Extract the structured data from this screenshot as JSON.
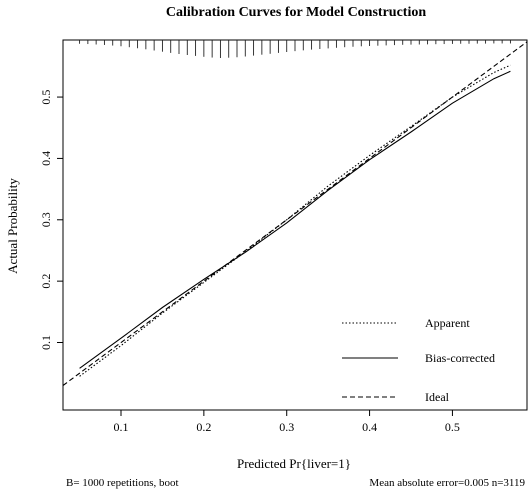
{
  "chart_data": {
    "type": "line",
    "title": "Calibration Curves for Model Construction",
    "xlabel": "Predicted Pr{liver=1}",
    "ylabel": "Actual Probability",
    "xlim": [
      0.03,
      0.59
    ],
    "ylim": [
      -0.01,
      0.593
    ],
    "x_ticks": [
      0.1,
      0.2,
      0.3,
      0.4,
      0.5
    ],
    "x_tick_labels": [
      "0.1",
      "0.2",
      "0.3",
      "0.4",
      "0.5"
    ],
    "y_ticks": [
      0.1,
      0.2,
      0.3,
      0.4,
      0.5
    ],
    "y_tick_labels": [
      "0.1",
      "0.2",
      "0.3",
      "0.4",
      "0.5"
    ],
    "grid": false,
    "legend_position": "bottom-right",
    "series": [
      {
        "name": "Apparent",
        "line_style": "dotted",
        "x": [
          0.05,
          0.1,
          0.15,
          0.2,
          0.25,
          0.3,
          0.35,
          0.4,
          0.45,
          0.5,
          0.55,
          0.57
        ],
        "y": [
          0.045,
          0.095,
          0.148,
          0.198,
          0.248,
          0.3,
          0.355,
          0.405,
          0.452,
          0.5,
          0.54,
          0.552
        ]
      },
      {
        "name": "Bias-corrected",
        "line_style": "solid",
        "x": [
          0.05,
          0.1,
          0.15,
          0.2,
          0.25,
          0.3,
          0.35,
          0.4,
          0.45,
          0.5,
          0.55,
          0.57
        ],
        "y": [
          0.058,
          0.107,
          0.157,
          0.203,
          0.247,
          0.295,
          0.348,
          0.398,
          0.443,
          0.49,
          0.53,
          0.542
        ]
      },
      {
        "name": "Ideal",
        "line_style": "dashed",
        "x": [
          0.03,
          0.59
        ],
        "y": [
          0.03,
          0.59
        ]
      }
    ],
    "rug": {
      "x": [
        0.05,
        0.06,
        0.07,
        0.08,
        0.09,
        0.1,
        0.11,
        0.12,
        0.13,
        0.14,
        0.15,
        0.16,
        0.17,
        0.18,
        0.19,
        0.2,
        0.21,
        0.22,
        0.23,
        0.24,
        0.25,
        0.26,
        0.27,
        0.28,
        0.29,
        0.3,
        0.31,
        0.32,
        0.33,
        0.34,
        0.35,
        0.36,
        0.37,
        0.38,
        0.39,
        0.4,
        0.41,
        0.42,
        0.43,
        0.44,
        0.45,
        0.46,
        0.47,
        0.48,
        0.49,
        0.5,
        0.51,
        0.52,
        0.53,
        0.54,
        0.55,
        0.56,
        0.57
      ],
      "density": [
        0.05,
        0.07,
        0.1,
        0.13,
        0.17,
        0.22,
        0.28,
        0.35,
        0.42,
        0.5,
        0.58,
        0.66,
        0.73,
        0.8,
        0.86,
        0.92,
        0.97,
        1.0,
        0.98,
        0.95,
        0.9,
        0.84,
        0.78,
        0.72,
        0.66,
        0.6,
        0.54,
        0.49,
        0.44,
        0.4,
        0.36,
        0.32,
        0.28,
        0.25,
        0.22,
        0.2,
        0.18,
        0.16,
        0.14,
        0.12,
        0.11,
        0.1,
        0.09,
        0.08,
        0.07,
        0.06,
        0.05,
        0.05,
        0.04,
        0.04,
        0.03,
        0.03,
        0.03
      ]
    },
    "footer_left": "B= 1000 repetitions, boot",
    "footer_right": "Mean absolute error=0.005 n=3119"
  }
}
